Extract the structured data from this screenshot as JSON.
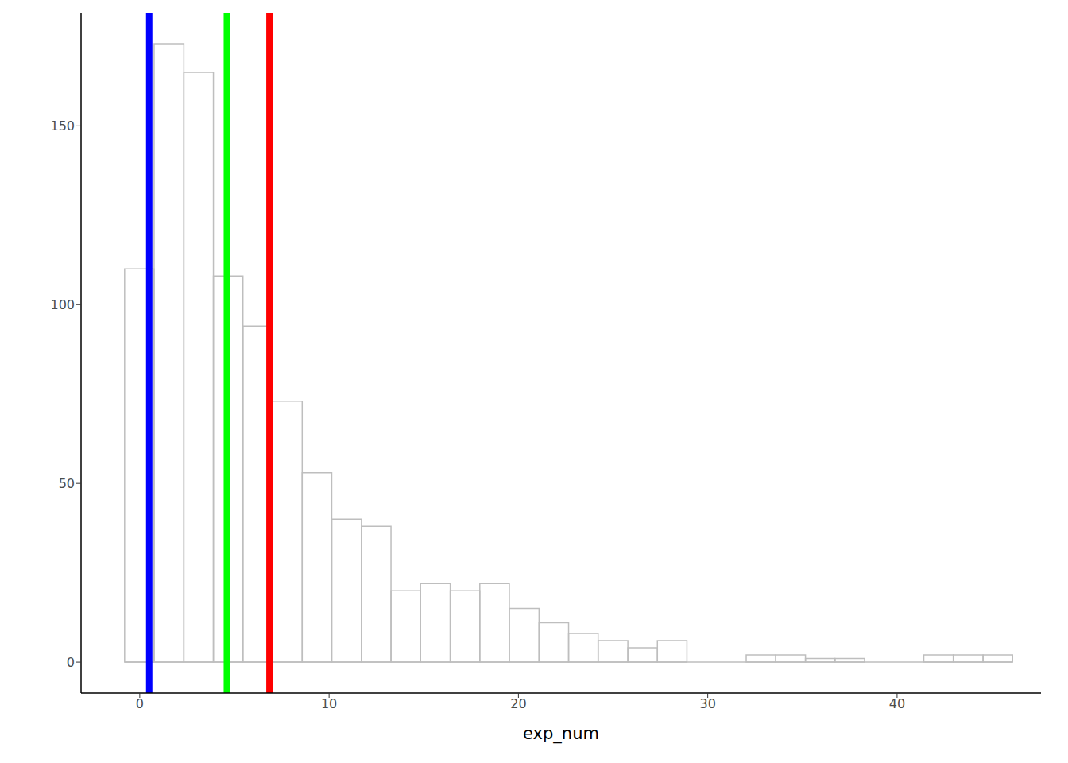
{
  "chart_data": {
    "type": "histogram",
    "x_label": "exp_num",
    "bins": [
      -0.8,
      0.76,
      2.33,
      3.89,
      5.45,
      7.02,
      8.58,
      10.14,
      11.71,
      13.27,
      14.83,
      16.4,
      17.96,
      19.52,
      21.09,
      22.65,
      24.21,
      25.78,
      27.34,
      28.9,
      30.47,
      32.03,
      33.59,
      35.16,
      36.72,
      38.28,
      39.85,
      41.41,
      42.97,
      44.54,
      46.1
    ],
    "counts": [
      110,
      173,
      165,
      108,
      94,
      73,
      53,
      40,
      38,
      20,
      22,
      20,
      22,
      15,
      11,
      8,
      6,
      4,
      6,
      0,
      0,
      2,
      2,
      1,
      1,
      0,
      0,
      2,
      2,
      2
    ],
    "color": "#bebebe",
    "reference_lines": [
      {
        "x": 0.5,
        "color": "#0000ff"
      },
      {
        "x": 4.6,
        "color": "#00ff00"
      },
      {
        "x": 6.85,
        "color": "#ff0000"
      }
    ],
    "xlim": [
      -3.1,
      47.6
    ],
    "xticks": [
      0,
      10,
      20,
      30,
      40
    ],
    "ylim": [
      -8.65,
      181.65
    ],
    "yticks": [
      0,
      50,
      100,
      150
    ],
    "grid": false
  }
}
